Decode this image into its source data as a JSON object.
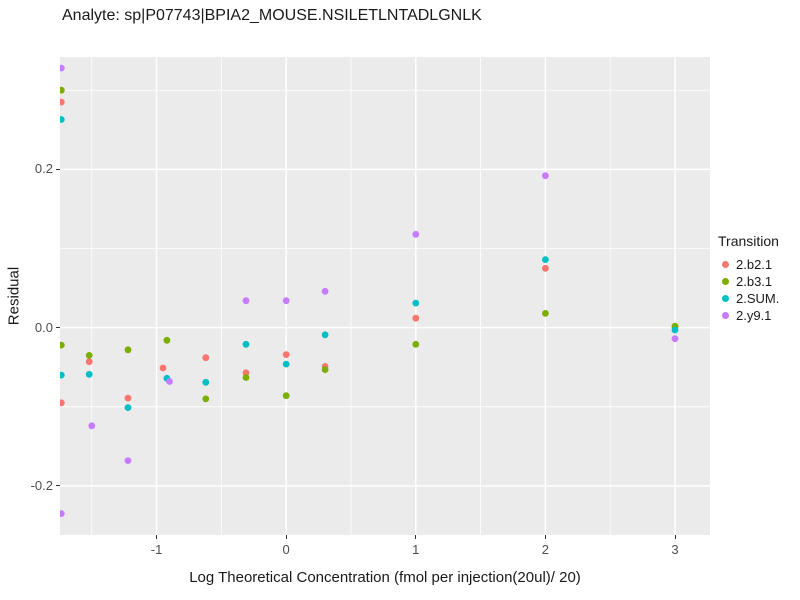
{
  "title": "Analyte: sp|P07743|BPIA2_MOUSE.NSILETLNTADLGNLK",
  "chart_data": {
    "type": "scatter",
    "title": "Analyte: sp|P07743|BPIA2_MOUSE.NSILETLNTADLGNLK",
    "xlabel": "Log Theoretical Concentration (fmol per injection(20ul)/ 20)",
    "ylabel": "Residual",
    "xlim": [
      -1.745,
      3.27
    ],
    "ylim": [
      -0.262,
      0.342
    ],
    "grid": true,
    "panel_bg": "#EBEBEB",
    "grid_color": "#FFFFFF",
    "tick_color": "#333333",
    "tick_label_color": "#4d4d4d",
    "x_ticks": [
      {
        "v": -1,
        "label": "-1"
      },
      {
        "v": 0,
        "label": "0"
      },
      {
        "v": 1,
        "label": "1"
      },
      {
        "v": 2,
        "label": "2"
      },
      {
        "v": 3,
        "label": "3"
      }
    ],
    "y_ticks": [
      {
        "v": -0.2,
        "label": "-0.2"
      },
      {
        "v": 0.0,
        "label": "0.0"
      },
      {
        "v": 0.2,
        "label": "0.2"
      }
    ],
    "x_minor_ticks": [
      -1.5,
      -0.5,
      0.5,
      1.5,
      2.5
    ],
    "y_minor_ticks": [
      -0.1,
      0.1,
      0.3
    ],
    "legend": {
      "title": "Transition",
      "position": "right"
    },
    "series": [
      {
        "name": "2.b2.1",
        "color": "#F8766D",
        "points": [
          [
            -1.735,
            0.285
          ],
          [
            -1.735,
            -0.095
          ],
          [
            -1.52,
            -0.043
          ],
          [
            -1.22,
            -0.089
          ],
          [
            -0.95,
            -0.051
          ],
          [
            -0.62,
            -0.038
          ],
          [
            -0.31,
            -0.057
          ],
          [
            0.0,
            -0.034
          ],
          [
            0.3,
            -0.049
          ],
          [
            1.0,
            0.012
          ],
          [
            2.0,
            0.075
          ],
          [
            3.0,
            0.0
          ]
        ]
      },
      {
        "name": "2.b3.1",
        "color": "#7CAE00",
        "points": [
          [
            -1.735,
            0.3
          ],
          [
            -1.735,
            -0.022
          ],
          [
            -1.52,
            -0.035
          ],
          [
            -1.22,
            -0.028
          ],
          [
            -0.92,
            -0.016
          ],
          [
            -0.62,
            -0.09
          ],
          [
            -0.31,
            -0.063
          ],
          [
            0.0,
            -0.086
          ],
          [
            0.3,
            -0.053
          ],
          [
            1.0,
            -0.021
          ],
          [
            2.0,
            0.018
          ],
          [
            3.0,
            0.002
          ]
        ]
      },
      {
        "name": "2.SUM.",
        "color": "#00BFC4",
        "points": [
          [
            -1.735,
            0.263
          ],
          [
            -1.735,
            -0.06
          ],
          [
            -1.52,
            -0.059
          ],
          [
            -1.22,
            -0.101
          ],
          [
            -0.92,
            -0.064
          ],
          [
            -0.62,
            -0.069
          ],
          [
            -0.31,
            -0.021
          ],
          [
            0.0,
            -0.046
          ],
          [
            0.3,
            -0.009
          ],
          [
            1.0,
            0.031
          ],
          [
            2.0,
            0.086
          ],
          [
            3.0,
            -0.003
          ]
        ]
      },
      {
        "name": "2.y9.1",
        "color": "#C77CFF",
        "points": [
          [
            -1.735,
            0.328
          ],
          [
            -1.735,
            -0.235
          ],
          [
            -1.5,
            -0.124
          ],
          [
            -1.22,
            -0.168
          ],
          [
            -0.9,
            -0.068
          ],
          [
            -0.31,
            0.034
          ],
          [
            0.0,
            0.034
          ],
          [
            0.3,
            0.046
          ],
          [
            1.0,
            0.118
          ],
          [
            2.0,
            0.192
          ],
          [
            3.0,
            -0.014
          ]
        ]
      }
    ]
  }
}
